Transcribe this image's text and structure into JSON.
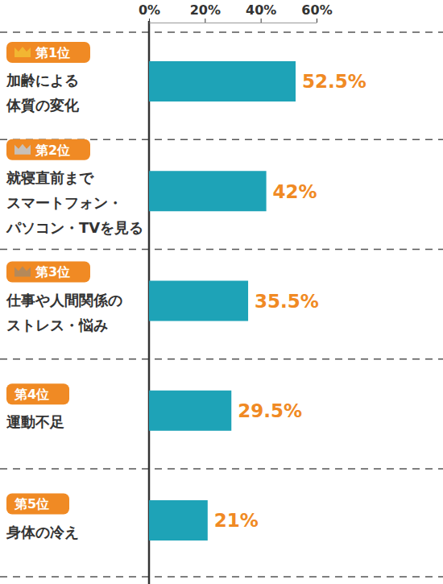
{
  "chart_data": {
    "type": "bar",
    "orientation": "horizontal",
    "ranks": [
      "第1位",
      "第2位",
      "第3位",
      "第4位",
      "第5位"
    ],
    "categories": [
      "加齢による\n体質の変化",
      "就寝直前まで\nスマートフォン・\nパソコン・TVを見る",
      "仕事や人間関係の\nストレス・悩み",
      "運動不足",
      "身体の冷え"
    ],
    "values": [
      52.5,
      42,
      35.5,
      29.5,
      21
    ],
    "value_labels": [
      "52.5%",
      "42%",
      "35.5%",
      "29.5%",
      "21%"
    ],
    "data_labels": true,
    "color": "#1ea3b7",
    "xlim": [
      0,
      60
    ],
    "xticks": [
      {
        "value": 0,
        "label": "0%"
      },
      {
        "value": 20,
        "label": "20%"
      },
      {
        "value": 40,
        "label": "40%"
      },
      {
        "value": 60,
        "label": "60%"
      }
    ],
    "grid": false
  }
}
